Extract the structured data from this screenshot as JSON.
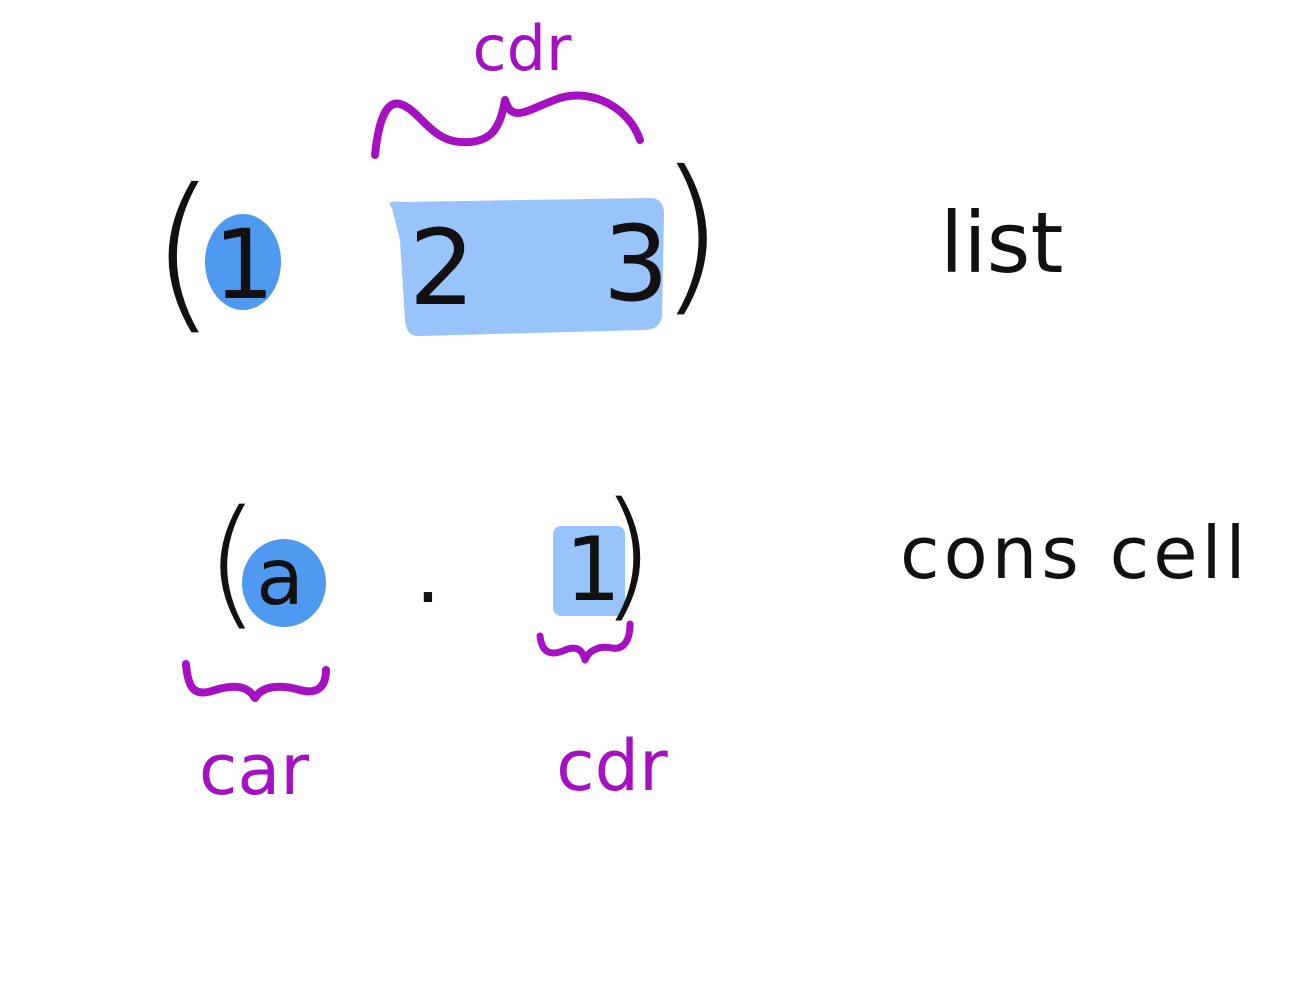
{
  "colors": {
    "ink": "#111111",
    "annotation": "#a511c2",
    "highlight_dark": "#4f9af0",
    "highlight_light": "#99c4fb",
    "background": "#ffffff"
  },
  "list_example": {
    "open_paren": "(",
    "close_paren": ")",
    "first": "1",
    "second": "2",
    "third": "3",
    "cdr_annotation": "cdr",
    "label": "list"
  },
  "cons_example": {
    "open_paren": "(",
    "close_paren": ")",
    "car_value": "a",
    "dot": ".",
    "cdr_value": "1",
    "car_annotation": "car",
    "cdr_annotation": "cdr",
    "label": "cons cell"
  }
}
